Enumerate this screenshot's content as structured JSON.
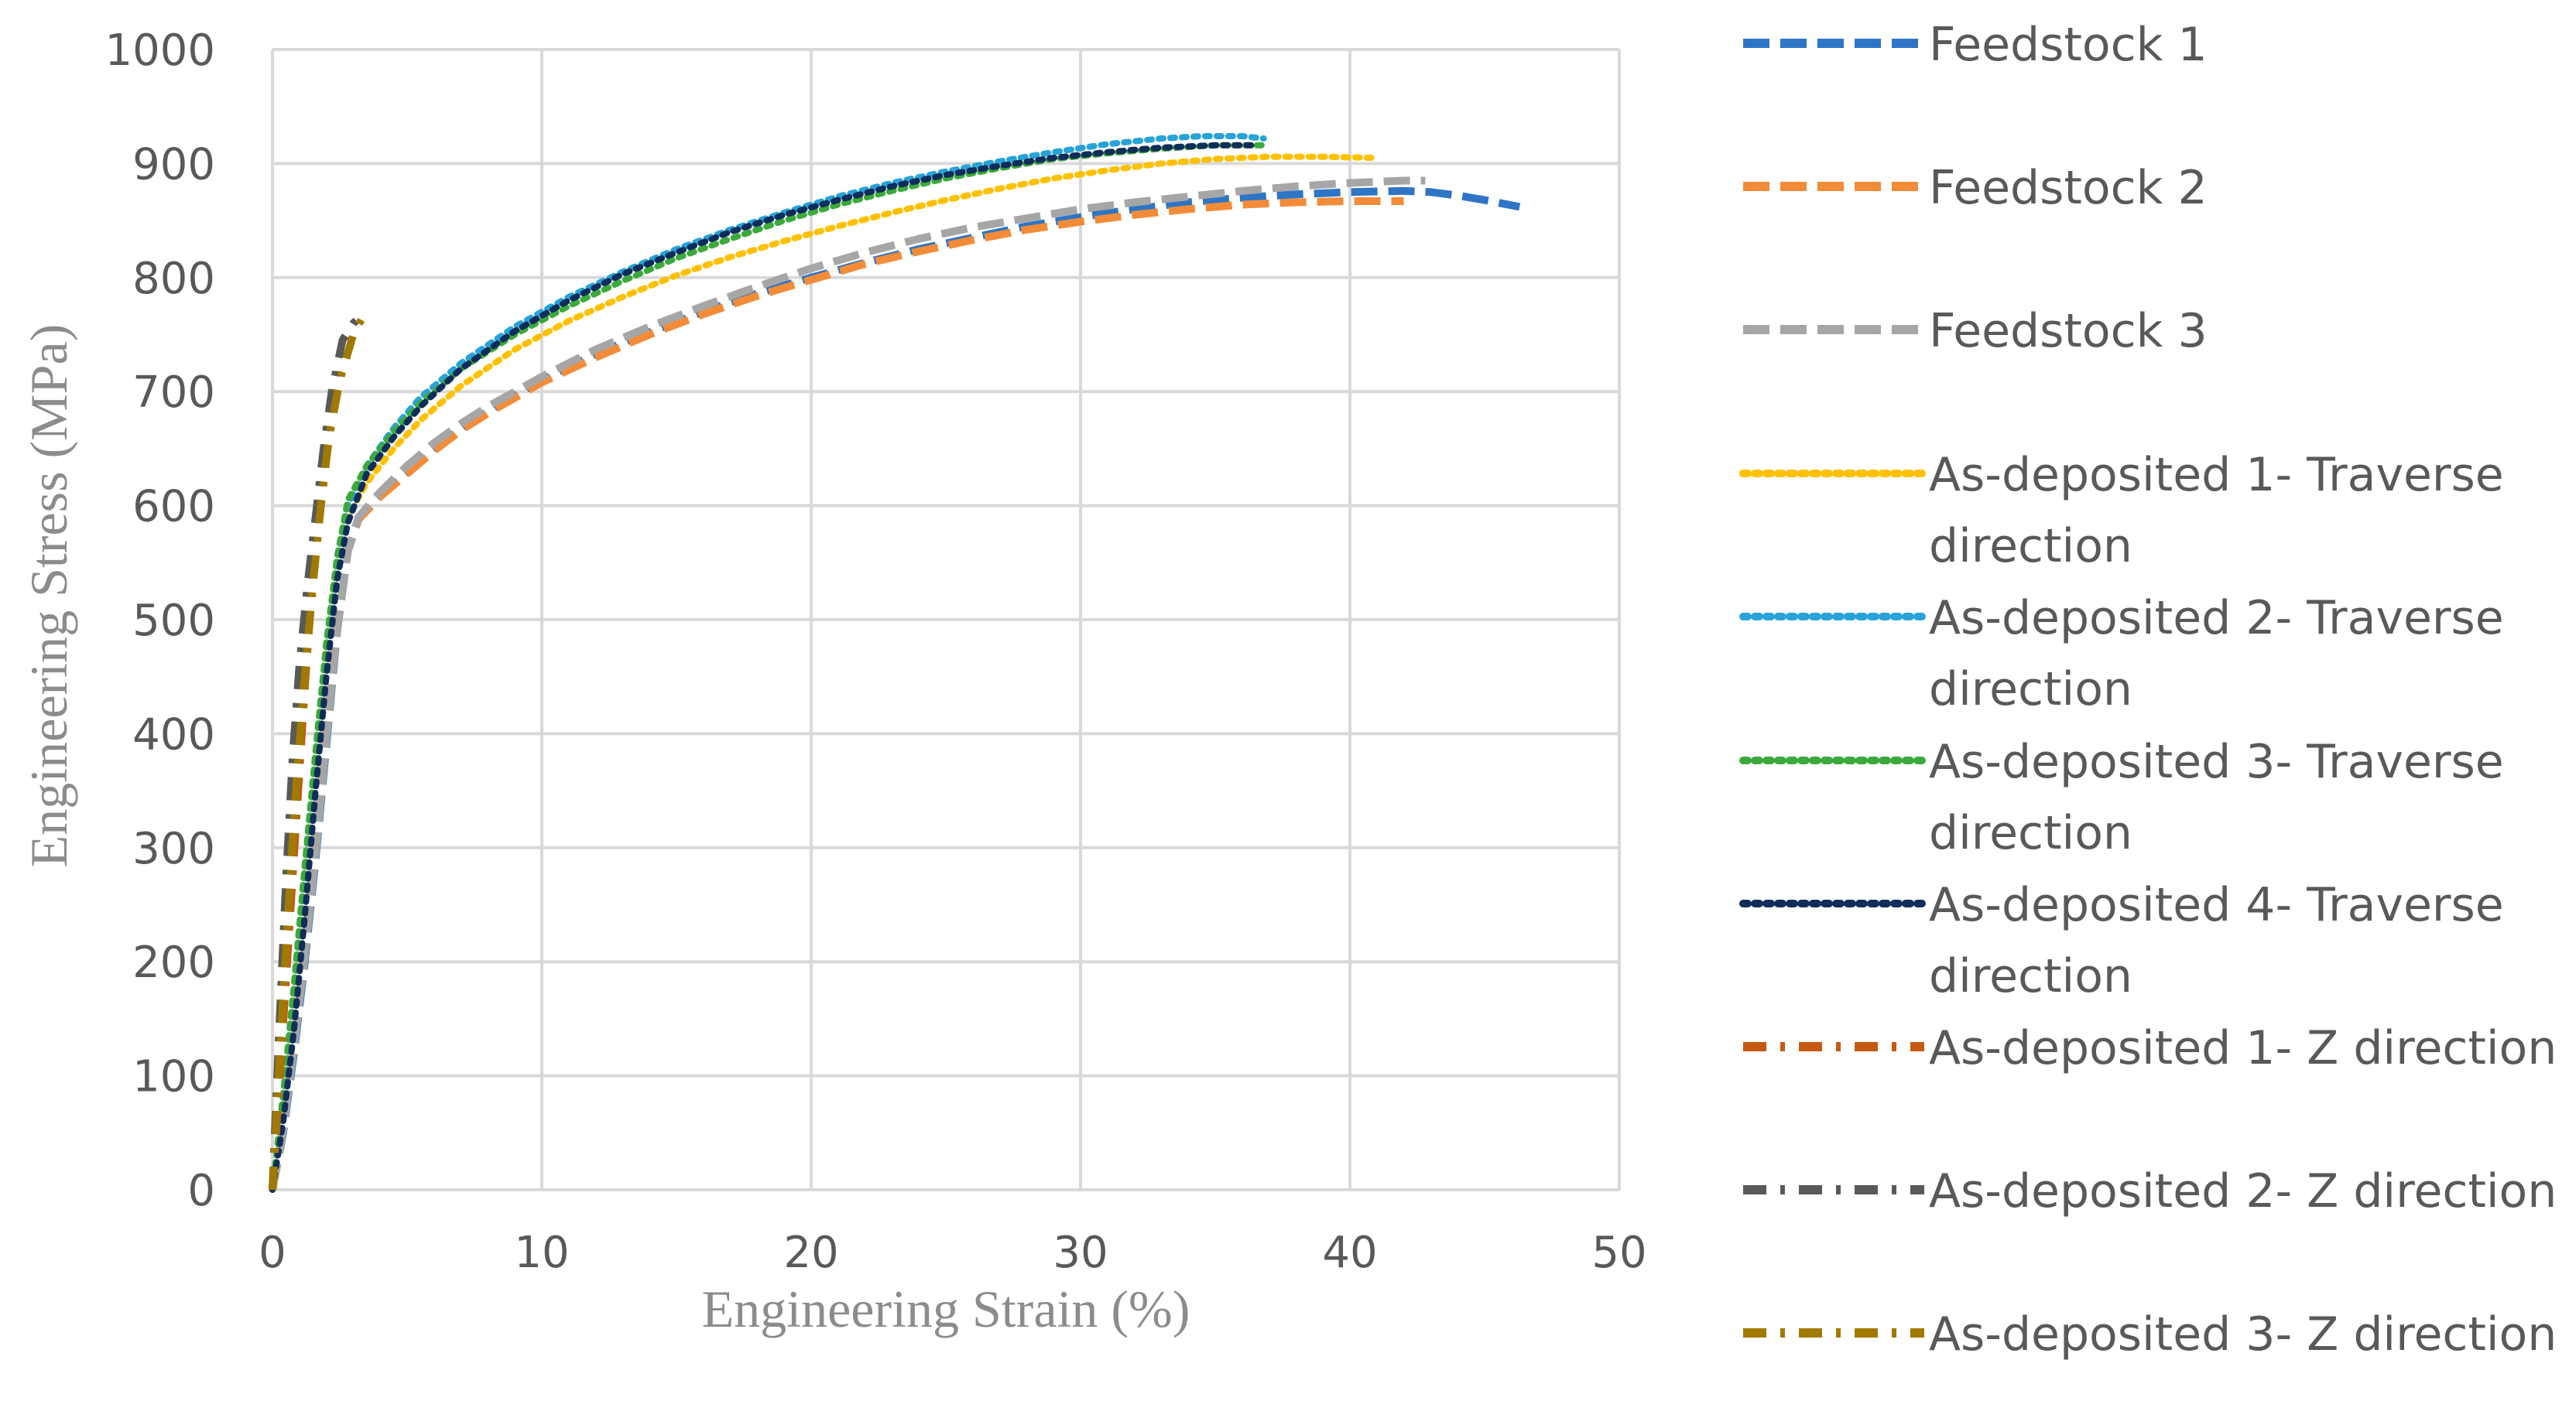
{
  "chart_data": {
    "type": "line",
    "title": "",
    "xlabel": "Engineering Strain (%)",
    "ylabel": "Engineering Stress (MPa)",
    "xlim": [
      0,
      50
    ],
    "ylim": [
      0,
      1000
    ],
    "xticks": [
      0,
      10,
      20,
      30,
      40,
      50
    ],
    "yticks": [
      0,
      100,
      200,
      300,
      400,
      500,
      600,
      700,
      800,
      900,
      1000
    ],
    "grid": true,
    "legend_position": "right",
    "series": [
      {
        "name": "Feedstock 1",
        "color": "#2E75C6",
        "dash": "dashed",
        "x": [
          0,
          0.4,
          0.8,
          1.2,
          1.6,
          2.0,
          2.4,
          2.8,
          3.2,
          4,
          5,
          6,
          7,
          8,
          10,
          12,
          14,
          16,
          18,
          20,
          22,
          24,
          26,
          28,
          30,
          32,
          34,
          36,
          38,
          40,
          42,
          43,
          44,
          45,
          46.3
        ],
        "y": [
          0,
          50,
          120,
          200,
          290,
          390,
          490,
          560,
          590,
          610,
          630,
          650,
          668,
          683,
          710,
          733,
          752,
          770,
          786,
          800,
          813,
          825,
          835,
          845,
          853,
          860,
          866,
          870,
          873,
          875,
          876,
          875,
          872,
          868,
          862
        ]
      },
      {
        "name": "Feedstock 2",
        "color": "#F28C38",
        "dash": "dashed",
        "x": [
          0,
          0.4,
          0.8,
          1.2,
          1.6,
          2.0,
          2.4,
          2.8,
          3.2,
          4,
          5,
          6,
          7,
          8,
          10,
          12,
          14,
          16,
          18,
          20,
          22,
          24,
          26,
          28,
          30,
          32,
          34,
          36,
          38,
          40,
          42
        ],
        "y": [
          0,
          55,
          130,
          210,
          300,
          400,
          495,
          560,
          588,
          608,
          628,
          648,
          666,
          681,
          708,
          730,
          750,
          768,
          784,
          798,
          812,
          823,
          833,
          842,
          849,
          855,
          860,
          864,
          866,
          867,
          867
        ]
      },
      {
        "name": "Feedstock 3",
        "color": "#A6A6A6",
        "dash": "dashed",
        "x": [
          0,
          0.4,
          0.8,
          1.2,
          1.6,
          2.0,
          2.4,
          2.8,
          3.2,
          4,
          5,
          6,
          7,
          8,
          10,
          12,
          14,
          16,
          18,
          20,
          22,
          24,
          26,
          28,
          30,
          32,
          34,
          36,
          38,
          40,
          42,
          42.8
        ],
        "y": [
          0,
          52,
          125,
          205,
          295,
          395,
          492,
          560,
          590,
          612,
          635,
          655,
          672,
          687,
          713,
          737,
          757,
          775,
          792,
          808,
          822,
          834,
          844,
          852,
          860,
          866,
          871,
          876,
          880,
          883,
          885,
          885
        ]
      },
      {
        "name": "As-deposited 1- Traverse direction",
        "color": "#FFC000",
        "dash": "dotted",
        "x": [
          0,
          0.4,
          0.8,
          1.2,
          1.6,
          2.0,
          2.4,
          2.8,
          3.5,
          4.5,
          5.5,
          7,
          9,
          11,
          13,
          15,
          17,
          19,
          21,
          23,
          25,
          27,
          29,
          31,
          33,
          35,
          37,
          39,
          40.8
        ],
        "y": [
          0,
          70,
          160,
          260,
          360,
          460,
          540,
          590,
          620,
          650,
          675,
          705,
          737,
          762,
          783,
          802,
          818,
          832,
          845,
          857,
          868,
          878,
          887,
          894,
          900,
          904,
          906,
          906,
          905
        ]
      },
      {
        "name": "As-deposited 2- Traverse direction",
        "color": "#27A3D9",
        "dash": "dotted",
        "x": [
          0,
          0.4,
          0.8,
          1.2,
          1.6,
          2.0,
          2.4,
          2.8,
          3.5,
          4.5,
          5.5,
          7,
          9,
          11,
          13,
          15,
          17,
          19,
          21,
          23,
          25,
          27,
          29,
          31,
          33,
          34.5,
          36,
          36.8
        ],
        "y": [
          0,
          80,
          170,
          275,
          375,
          470,
          550,
          600,
          635,
          668,
          695,
          725,
          757,
          783,
          805,
          825,
          842,
          857,
          871,
          883,
          893,
          902,
          910,
          917,
          922,
          924,
          924,
          922
        ]
      },
      {
        "name": "As-deposited 3- Traverse direction",
        "color": "#3BAA3B",
        "dash": "dotted",
        "x": [
          0,
          0.4,
          0.8,
          1.2,
          1.6,
          2.0,
          2.4,
          2.8,
          3.5,
          4.5,
          5.5,
          7,
          9,
          11,
          13,
          15,
          17,
          19,
          21,
          23,
          25,
          27,
          29,
          31,
          33,
          35,
          36.8
        ],
        "y": [
          0,
          85,
          180,
          285,
          385,
          480,
          555,
          605,
          635,
          665,
          690,
          720,
          750,
          775,
          797,
          817,
          834,
          850,
          864,
          876,
          887,
          896,
          904,
          909,
          913,
          916,
          916
        ]
      },
      {
        "name": "As-deposited 4- Traverse direction",
        "color": "#0F2D5A",
        "dash": "dotted",
        "x": [
          0,
          0.4,
          0.8,
          1.2,
          1.6,
          2.0,
          2.4,
          2.8,
          3.5,
          4.5,
          5.5,
          7,
          9,
          11,
          13,
          15,
          17,
          19,
          21,
          23,
          25,
          27,
          29,
          31,
          33,
          35,
          36.5
        ],
        "y": [
          0,
          60,
          140,
          240,
          350,
          450,
          535,
          585,
          628,
          660,
          687,
          720,
          753,
          780,
          803,
          822,
          840,
          855,
          868,
          880,
          890,
          898,
          905,
          910,
          914,
          916,
          916
        ]
      },
      {
        "name": "As-deposited 1- Z direction",
        "color": "#C65911",
        "dash": "dashdot",
        "x": [
          0,
          0.3,
          0.6,
          0.9,
          1.2,
          1.5,
          1.8,
          2.1,
          2.5
        ],
        "y": [
          0,
          110,
          220,
          330,
          440,
          540,
          620,
          680,
          720
        ]
      },
      {
        "name": "As-deposited 2- Z direction",
        "color": "#595959",
        "dash": "dashdot",
        "x": [
          0,
          0.25,
          0.5,
          0.75,
          1.0,
          1.3,
          1.6,
          1.9,
          2.2,
          2.6,
          3.0,
          3.5
        ],
        "y": [
          0,
          140,
          270,
          380,
          460,
          530,
          590,
          650,
          700,
          745,
          760,
          770
        ]
      },
      {
        "name": "As-deposited 3- Z direction",
        "color": "#A07A00",
        "dash": "dashdot",
        "x": [
          0,
          0.3,
          0.6,
          0.9,
          1.2,
          1.5,
          1.8,
          2.1,
          2.5,
          3.0,
          3.5
        ],
        "y": [
          0,
          130,
          250,
          360,
          450,
          530,
          600,
          660,
          710,
          750,
          772
        ]
      }
    ],
    "legend": [
      {
        "lines": [
          "Feedstock 1"
        ]
      },
      {
        "lines": [
          "Feedstock 2"
        ]
      },
      {
        "lines": [
          "Feedstock 3"
        ]
      },
      {
        "lines": [
          "As-deposited 1- Traverse",
          "direction"
        ]
      },
      {
        "lines": [
          "As-deposited 2- Traverse",
          "direction"
        ]
      },
      {
        "lines": [
          "As-deposited 3- Traverse",
          "direction"
        ]
      },
      {
        "lines": [
          "As-deposited 4- Traverse",
          "direction"
        ]
      },
      {
        "lines": [
          "As-deposited 1- Z direction"
        ]
      },
      {
        "lines": [
          "As-deposited 2- Z direction"
        ]
      },
      {
        "lines": [
          "As-deposited 3- Z direction"
        ]
      }
    ]
  }
}
